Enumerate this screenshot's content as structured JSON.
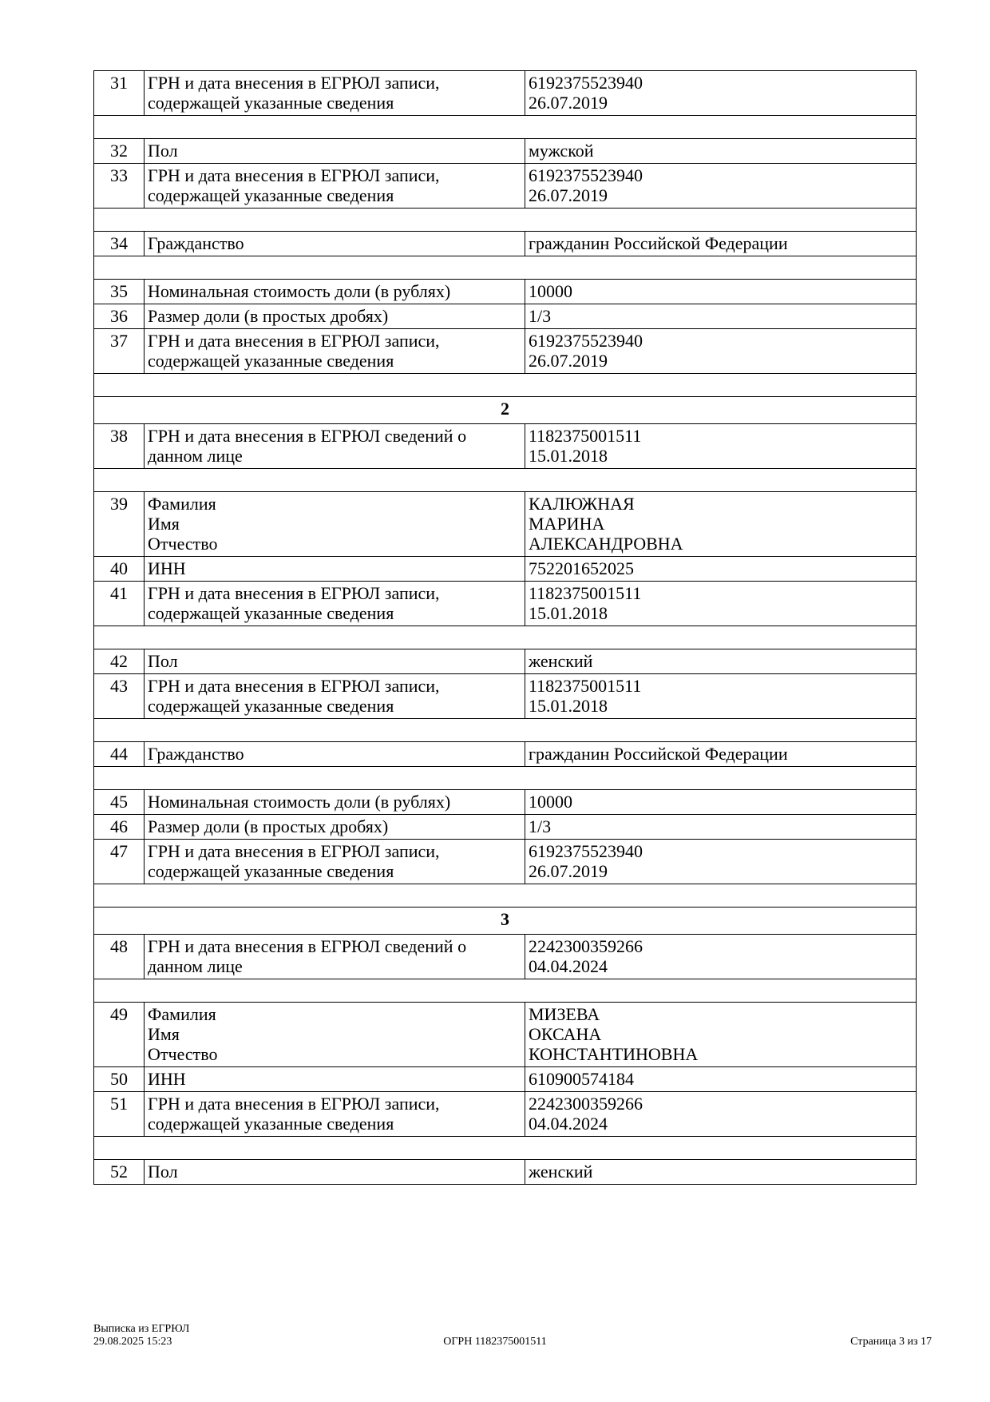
{
  "rows": [
    {
      "type": "row",
      "num": "31",
      "label": [
        "ГРН и дата внесения в ЕГРЮЛ записи,",
        "содержащей указанные сведения"
      ],
      "value": [
        "6192375523940",
        "26.07.2019"
      ]
    },
    {
      "type": "empty"
    },
    {
      "type": "row",
      "num": "32",
      "label": [
        "Пол"
      ],
      "value": [
        "мужской"
      ]
    },
    {
      "type": "row",
      "num": "33",
      "label": [
        "ГРН и дата внесения в ЕГРЮЛ записи,",
        "содержащей указанные сведения"
      ],
      "value": [
        "6192375523940",
        "26.07.2019"
      ]
    },
    {
      "type": "empty"
    },
    {
      "type": "row",
      "num": "34",
      "label": [
        "Гражданство"
      ],
      "value": [
        "гражданин Российской Федерации"
      ]
    },
    {
      "type": "empty"
    },
    {
      "type": "row",
      "num": "35",
      "label": [
        "Номинальная стоимость доли (в рублях)"
      ],
      "value": [
        "10000"
      ]
    },
    {
      "type": "row",
      "num": "36",
      "label": [
        "Размер доли (в простых дробях)"
      ],
      "value": [
        "1/3"
      ]
    },
    {
      "type": "row",
      "num": "37",
      "label": [
        "ГРН и дата внесения в ЕГРЮЛ записи,",
        "содержащей указанные сведения"
      ],
      "value": [
        "6192375523940",
        "26.07.2019"
      ]
    },
    {
      "type": "empty"
    },
    {
      "type": "section",
      "title": "2"
    },
    {
      "type": "row",
      "num": "38",
      "label": [
        "ГРН и дата внесения в ЕГРЮЛ сведений о",
        "данном лице"
      ],
      "value": [
        "1182375001511",
        "15.01.2018"
      ]
    },
    {
      "type": "empty"
    },
    {
      "type": "row",
      "num": "39",
      "label": [
        "Фамилия",
        "Имя",
        "Отчество"
      ],
      "value": [
        "КАЛЮЖНАЯ",
        "МАРИНА",
        "АЛЕКСАНДРОВНА"
      ]
    },
    {
      "type": "row",
      "num": "40",
      "label": [
        "ИНН"
      ],
      "value": [
        "752201652025"
      ]
    },
    {
      "type": "row",
      "num": "41",
      "label": [
        "ГРН и дата внесения в ЕГРЮЛ записи,",
        "содержащей указанные сведения"
      ],
      "value": [
        "1182375001511",
        "15.01.2018"
      ]
    },
    {
      "type": "empty"
    },
    {
      "type": "row",
      "num": "42",
      "label": [
        "Пол"
      ],
      "value": [
        "женский"
      ]
    },
    {
      "type": "row",
      "num": "43",
      "label": [
        "ГРН и дата внесения в ЕГРЮЛ записи,",
        "содержащей указанные сведения"
      ],
      "value": [
        "1182375001511",
        "15.01.2018"
      ]
    },
    {
      "type": "empty"
    },
    {
      "type": "row",
      "num": "44",
      "label": [
        "Гражданство"
      ],
      "value": [
        "гражданин Российской Федерации"
      ]
    },
    {
      "type": "empty"
    },
    {
      "type": "row",
      "num": "45",
      "label": [
        "Номинальная стоимость доли (в рублях)"
      ],
      "value": [
        "10000"
      ]
    },
    {
      "type": "row",
      "num": "46",
      "label": [
        "Размер доли (в простых дробях)"
      ],
      "value": [
        "1/3"
      ]
    },
    {
      "type": "row",
      "num": "47",
      "label": [
        "ГРН и дата внесения в ЕГРЮЛ записи,",
        "содержащей указанные сведения"
      ],
      "value": [
        "6192375523940",
        "26.07.2019"
      ]
    },
    {
      "type": "empty"
    },
    {
      "type": "section",
      "title": "3"
    },
    {
      "type": "row",
      "num": "48",
      "label": [
        "ГРН и дата внесения в ЕГРЮЛ сведений о",
        "данном лице"
      ],
      "value": [
        "2242300359266",
        "04.04.2024"
      ]
    },
    {
      "type": "empty"
    },
    {
      "type": "row",
      "num": "49",
      "label": [
        "Фамилия",
        "Имя",
        "Отчество"
      ],
      "value": [
        "МИЗЕВА",
        "ОКСАНА",
        "КОНСТАНТИНОВНА"
      ]
    },
    {
      "type": "row",
      "num": "50",
      "label": [
        "ИНН"
      ],
      "value": [
        "610900574184"
      ]
    },
    {
      "type": "row",
      "num": "51",
      "label": [
        "ГРН и дата внесения в ЕГРЮЛ записи,",
        "содержащей указанные сведения"
      ],
      "value": [
        "2242300359266",
        "04.04.2024"
      ]
    },
    {
      "type": "empty"
    },
    {
      "type": "row",
      "num": "52",
      "label": [
        "Пол"
      ],
      "value": [
        "женский"
      ]
    }
  ],
  "footer": {
    "title": "Выписка из ЕГРЮЛ",
    "datetime": "29.08.2025 15:23",
    "ogrn": "ОГРН 1182375001511",
    "page": "Страница 3 из 17"
  }
}
